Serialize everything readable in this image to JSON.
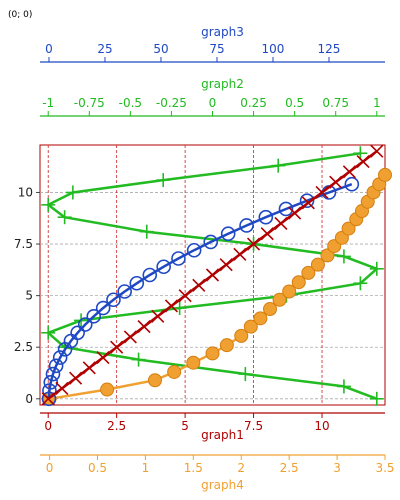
{
  "cursor_readout": "(0; 0)",
  "colors": {
    "graph1": "#b00000",
    "graph2": "#22bb22",
    "graph3": "#1f49c4",
    "graph4": "#f0a030",
    "grid_red": "#cc2222",
    "grid_gray": "#aaaaaa"
  },
  "chart_data": {
    "type": "line",
    "axes": {
      "left": {
        "range": [
          -0.3,
          12.3
        ],
        "ticks": [
          0,
          2.5,
          5,
          7.5,
          10
        ],
        "tick_labels": [
          "0",
          "2.5",
          "5",
          "7.5",
          "10"
        ]
      },
      "graph1": {
        "label": "graph1",
        "position": "bottom",
        "range": [
          -0.3,
          12.3
        ],
        "ticks": [
          0,
          2.5,
          5,
          7.5,
          10
        ],
        "tick_labels": [
          "0",
          "2.5",
          "5",
          "7.5",
          "10"
        ]
      },
      "graph4": {
        "label": "graph4",
        "position": "bottom",
        "range": [
          -0.1,
          3.5
        ],
        "ticks": [
          0,
          0.5,
          1,
          1.5,
          2,
          2.5,
          3,
          3.5
        ],
        "tick_labels": [
          "0",
          "0.5",
          "1",
          "1.5",
          "2",
          "2.5",
          "3",
          "3.5"
        ]
      },
      "graph2": {
        "label": "graph2",
        "position": "top",
        "range": [
          -1.05,
          1.05
        ],
        "ticks": [
          -1,
          -0.75,
          -0.5,
          -0.25,
          0,
          0.25,
          0.5,
          0.75,
          1
        ],
        "tick_labels": [
          "-1",
          "-0.75",
          "-0.5",
          "-0.25",
          "0",
          "0.25",
          "0.5",
          "0.75",
          "1"
        ]
      },
      "graph3": {
        "label": "graph3",
        "position": "top",
        "range": [
          -4,
          150
        ],
        "ticks": [
          0,
          25,
          50,
          75,
          100,
          125
        ],
        "tick_labels": [
          "0",
          "25",
          "50",
          "75",
          "100",
          "125"
        ]
      }
    },
    "series": [
      {
        "name": "graph1",
        "marker": "x",
        "x_axis": "graph1",
        "x": [
          0,
          0.5,
          1,
          1.5,
          2,
          2.5,
          3,
          3.5,
          4,
          4.5,
          5,
          5.5,
          6,
          6.5,
          7,
          7.5,
          8,
          8.5,
          9,
          9.5,
          10,
          10.5,
          11,
          11.5,
          12
        ],
        "y": [
          0,
          0.5,
          1,
          1.5,
          2,
          2.5,
          3,
          3.5,
          4,
          4.5,
          5,
          5.5,
          6,
          6.5,
          7,
          7.5,
          8,
          8.5,
          9,
          9.5,
          10,
          10.5,
          11,
          11.5,
          12
        ]
      },
      {
        "name": "graph2",
        "marker": "+",
        "x_axis": "graph2",
        "x": [
          1.0,
          0.8,
          0.2,
          -0.45,
          -0.9,
          -1.0,
          -0.8,
          -0.2,
          0.45,
          0.9,
          1.0,
          0.8,
          0.25,
          -0.4,
          -0.9,
          -1.0,
          -0.85,
          -0.3,
          0.4,
          0.9
        ],
        "y": [
          0,
          0.6,
          1.2,
          1.9,
          2.5,
          3.2,
          3.8,
          4.4,
          5.0,
          5.6,
          6.3,
          6.9,
          7.5,
          8.1,
          8.8,
          9.4,
          10.0,
          10.6,
          11.3,
          11.9
        ]
      },
      {
        "name": "graph3",
        "marker": "circle",
        "x_axis": "graph3",
        "x": [
          0,
          0.2,
          0.8,
          1.8,
          3.2,
          5,
          7.2,
          9.8,
          12.8,
          16.2,
          20,
          24.2,
          28.8,
          33.8,
          39.2,
          45,
          51.2,
          57.8,
          64.8,
          72.2,
          80,
          88.2,
          96.8,
          105.8,
          115.2,
          125,
          135.2
        ],
        "y": [
          0,
          0.4,
          0.8,
          1.2,
          1.6,
          2,
          2.4,
          2.8,
          3.2,
          3.6,
          4,
          4.4,
          4.8,
          5.2,
          5.6,
          6,
          6.4,
          6.8,
          7.2,
          7.6,
          8,
          8.4,
          8.8,
          9.2,
          9.6,
          10,
          10.4
        ]
      },
      {
        "name": "graph4",
        "marker": "filled-circle",
        "x_axis": "graph4",
        "x": [
          0,
          0.6,
          1.1,
          1.3,
          1.5,
          1.7,
          1.85,
          2.0,
          2.1,
          2.2,
          2.3,
          2.4,
          2.5,
          2.6,
          2.7,
          2.8,
          2.9,
          2.97,
          3.05,
          3.12,
          3.2,
          3.26,
          3.32,
          3.38,
          3.44,
          3.5
        ],
        "y": [
          0,
          0.45,
          0.9,
          1.3,
          1.75,
          2.2,
          2.6,
          3.05,
          3.5,
          3.9,
          4.35,
          4.8,
          5.2,
          5.65,
          6.1,
          6.5,
          6.95,
          7.4,
          7.8,
          8.25,
          8.7,
          9.1,
          9.55,
          10.0,
          10.4,
          10.85
        ]
      }
    ]
  }
}
